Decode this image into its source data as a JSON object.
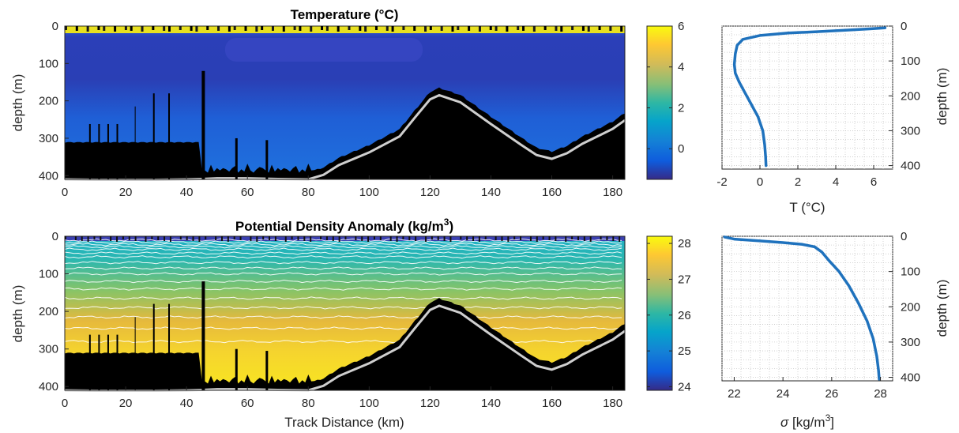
{
  "chart_data": [
    {
      "type": "heatmap",
      "title": "Temperature (°C)",
      "xlabel": "",
      "ylabel": "depth (m)",
      "xlim": [
        0,
        184
      ],
      "ylim": [
        410,
        0
      ],
      "xticks": [
        0,
        20,
        40,
        60,
        80,
        100,
        120,
        140,
        160,
        180
      ],
      "yticks": [
        0,
        100,
        200,
        300,
        400
      ],
      "colorbar": {
        "ticks": [
          0,
          2,
          4,
          6
        ],
        "range": [
          -1.5,
          6
        ]
      },
      "seafloor": {
        "x": [
          0,
          10,
          20,
          30,
          40,
          45,
          50,
          60,
          70,
          80,
          85,
          90,
          100,
          110,
          115,
          120,
          123,
          130,
          140,
          150,
          155,
          160,
          165,
          170,
          180,
          184
        ],
        "depth": [
          410,
          411,
          411,
          411,
          410,
          409,
          407,
          407,
          409,
          410,
          398,
          372,
          338,
          295,
          245,
          196,
          185,
          204,
          262,
          318,
          345,
          355,
          340,
          315,
          275,
          252
        ]
      }
    },
    {
      "type": "line",
      "title": "",
      "xlabel": "T (°C)",
      "ylabel": "depth (m)",
      "xlim": [
        -2,
        7
      ],
      "ylim": [
        410,
        0
      ],
      "xticks": [
        -2,
        0,
        2,
        4,
        6
      ],
      "yticks": [
        0,
        100,
        200,
        300,
        400
      ],
      "grid": true,
      "x": [
        6.6,
        5.8,
        4.5,
        3.0,
        1.5,
        0.0,
        -0.9,
        -1.2,
        -1.3,
        -1.35,
        -1.3,
        -1.1,
        -0.8,
        -0.5,
        -0.1,
        0.15,
        0.25,
        0.3,
        0.32
      ],
      "y": [
        5,
        8,
        12,
        16,
        20,
        27,
        38,
        55,
        80,
        110,
        135,
        160,
        190,
        220,
        260,
        300,
        340,
        375,
        400
      ]
    },
    {
      "type": "heatmap",
      "title": "Potential Density Anomaly (kg/m",
      "title_sup": "3",
      "title_end": ")",
      "xlabel": "Track Distance (km)",
      "ylabel": "depth (m)",
      "xlim": [
        0,
        184
      ],
      "ylim": [
        410,
        0
      ],
      "xticks": [
        0,
        20,
        40,
        60,
        80,
        100,
        120,
        140,
        160,
        180
      ],
      "yticks": [
        0,
        100,
        200,
        300,
        400
      ],
      "colorbar": {
        "ticks": [
          24,
          25,
          26,
          27,
          28
        ],
        "range": [
          23.9,
          28.2
        ]
      },
      "seafloor": {
        "x": [
          0,
          10,
          20,
          30,
          40,
          45,
          50,
          60,
          70,
          80,
          85,
          90,
          100,
          110,
          115,
          120,
          123,
          130,
          140,
          150,
          155,
          160,
          165,
          170,
          180,
          184
        ],
        "depth": [
          410,
          411,
          411,
          411,
          410,
          409,
          407,
          407,
          409,
          410,
          398,
          372,
          338,
          295,
          245,
          196,
          185,
          204,
          262,
          318,
          345,
          355,
          340,
          315,
          275,
          252
        ]
      }
    },
    {
      "type": "line",
      "title": "",
      "xlabel_prefix": "σ",
      "xlabel": " [kg/m",
      "xlabel_sup": "3",
      "xlabel_end": "]",
      "ylabel": "depth (m)",
      "xlim": [
        21.5,
        28.5
      ],
      "ylim": [
        410,
        0
      ],
      "xticks": [
        22,
        24,
        26,
        28
      ],
      "yticks": [
        0,
        100,
        200,
        300,
        400
      ],
      "grid": true,
      "x": [
        21.6,
        22.0,
        23.0,
        24.0,
        24.8,
        25.3,
        25.6,
        25.9,
        26.3,
        26.7,
        27.1,
        27.45,
        27.7,
        27.85,
        27.92,
        27.95
      ],
      "y": [
        2,
        8,
        13,
        18,
        23,
        30,
        45,
        70,
        100,
        140,
        190,
        240,
        290,
        340,
        380,
        405
      ]
    }
  ]
}
